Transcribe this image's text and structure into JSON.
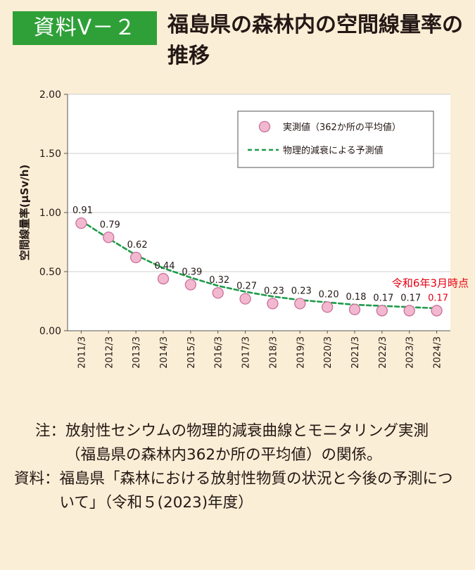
{
  "badge": "資料Ⅴ－２",
  "title": "福島県の森林内の空間線量率の推移",
  "chart_data": {
    "type": "scatter",
    "ylabel": "空間線量率(μSv/h)",
    "ylim": [
      0,
      2.0
    ],
    "yticks": [
      "2.00",
      "1.50",
      "1.00",
      "0.50",
      "0.00"
    ],
    "ytick_values": [
      2.0,
      1.5,
      1.0,
      0.5,
      0.0
    ],
    "categories": [
      "2011/3",
      "2012/3",
      "2013/3",
      "2014/3",
      "2015/3",
      "2016/3",
      "2017/3",
      "2018/3",
      "2019/3",
      "2020/3",
      "2021/3",
      "2022/3",
      "2023/3",
      "2024/3"
    ],
    "series": [
      {
        "name": "実測値（362か所の平均値）",
        "marker": "circle",
        "color": "#f2b8cf",
        "values": [
          0.91,
          0.79,
          0.62,
          0.44,
          0.39,
          0.32,
          0.27,
          0.23,
          0.23,
          0.2,
          0.18,
          0.17,
          0.17,
          0.17
        ],
        "labels": [
          "0.91",
          "0.79",
          "0.62",
          "0.44",
          "0.39",
          "0.32",
          "0.27",
          "0.23",
          "0.23",
          "0.20",
          "0.18",
          "0.17",
          "0.17",
          "0.17"
        ]
      },
      {
        "name": "物理的減衰による予測値",
        "style": "dashed-line",
        "color": "#1f9a4a",
        "values": [
          0.93,
          0.78,
          0.64,
          0.53,
          0.45,
          0.38,
          0.33,
          0.29,
          0.26,
          0.24,
          0.22,
          0.21,
          0.2,
          0.19
        ]
      }
    ],
    "annotation": "令和6年3月時点",
    "annotation_color": "#e60012",
    "grid": true,
    "legend_position": "top-right"
  },
  "notes": {
    "note_head": "注：",
    "note_text": "放射性セシウムの物理的減衰曲線とモニタリング実測（福島県の森林内362か所の平均値）の関係。",
    "source_head": "資料：",
    "source_text": "福島県「森林における放射性物質の状況と今後の予測について」（令和５(2023)年度）"
  }
}
